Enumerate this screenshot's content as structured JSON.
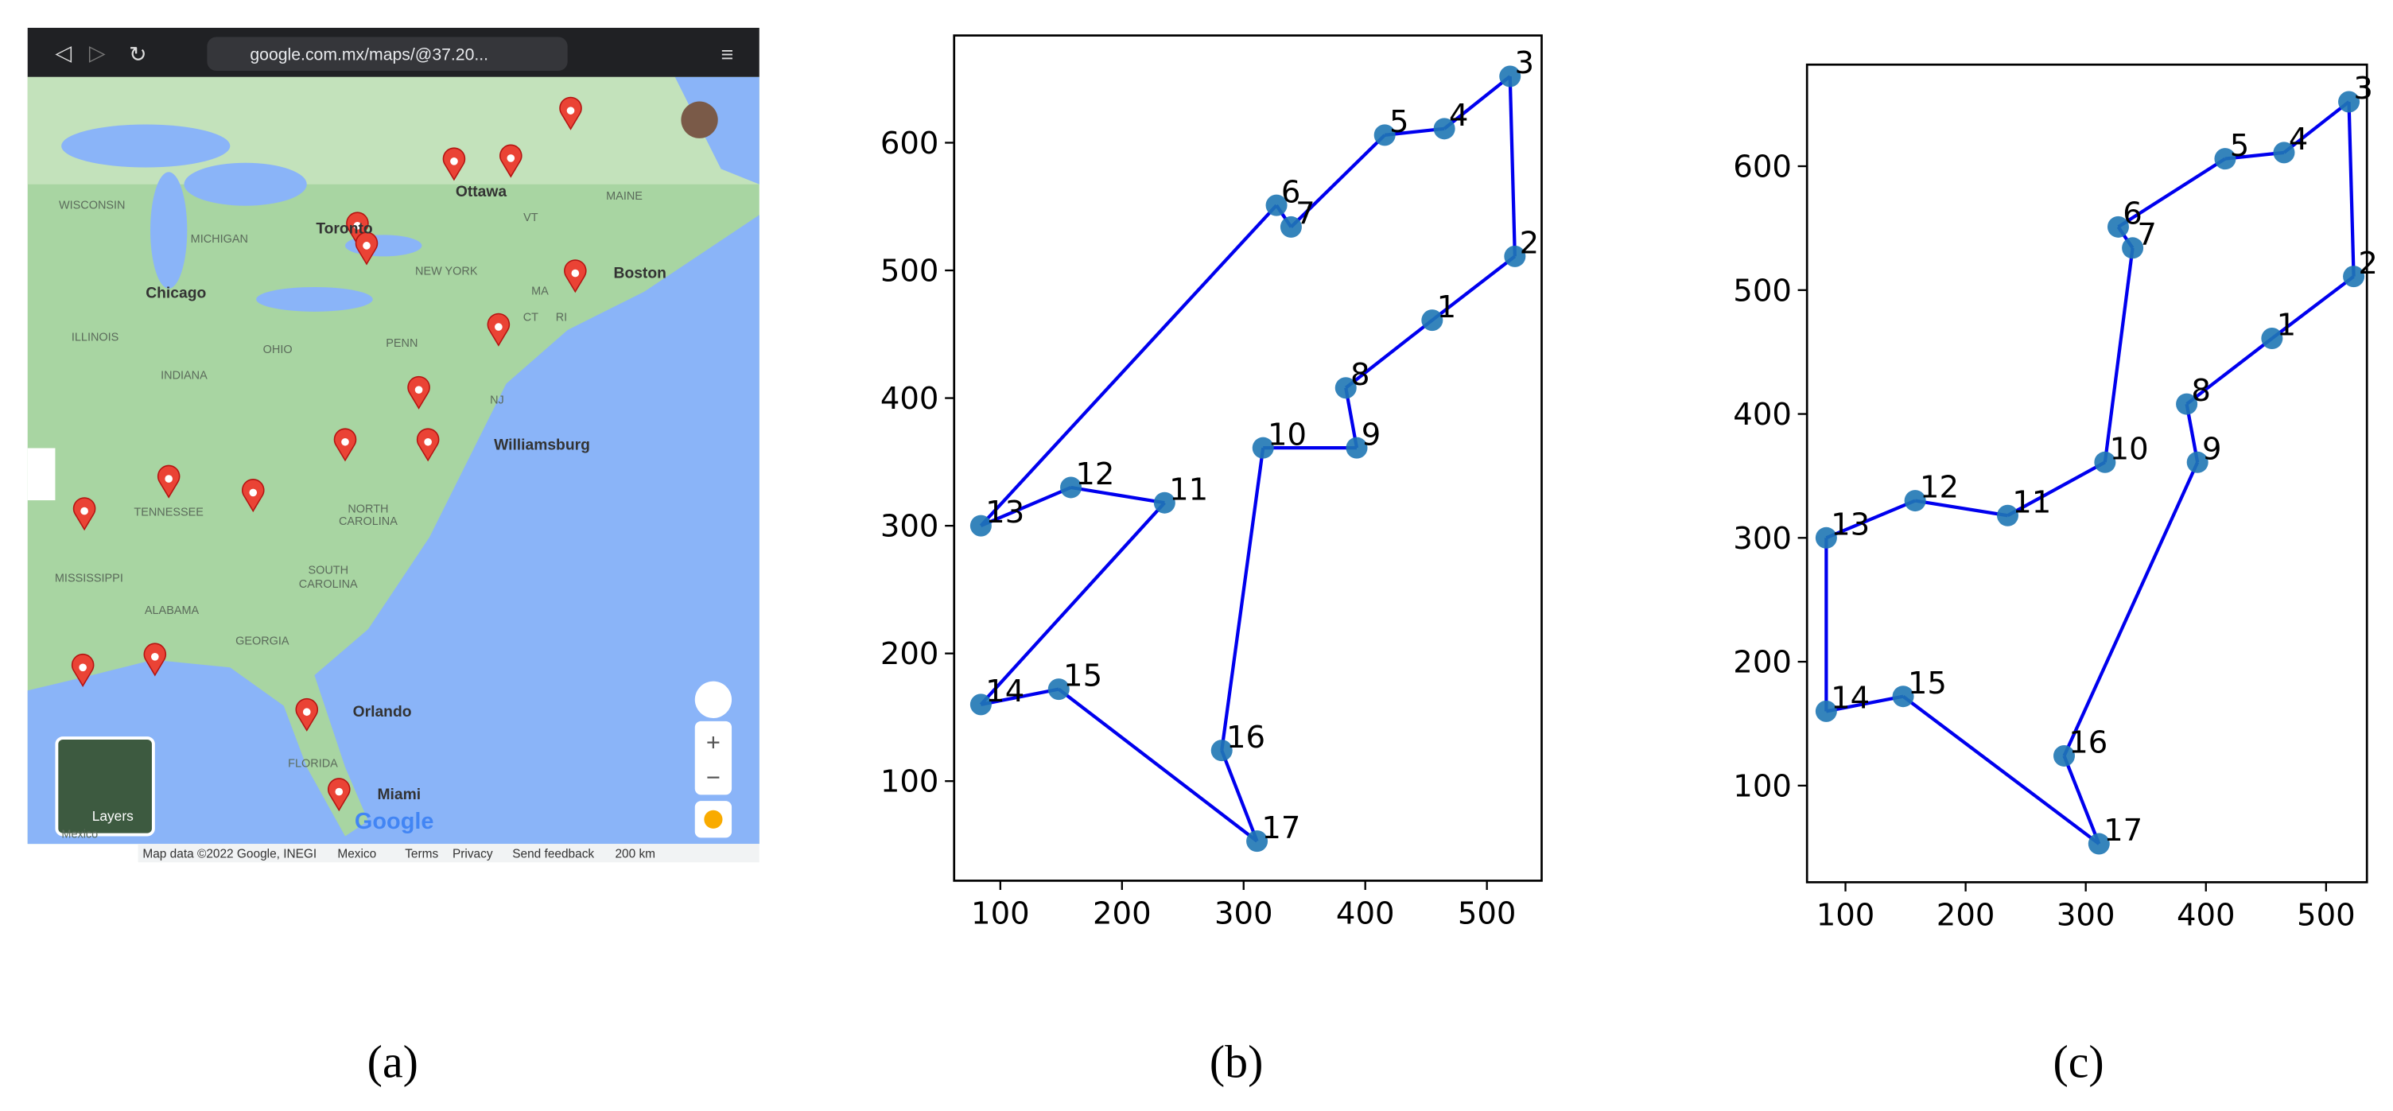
{
  "map": {
    "url": "google.com.mx/maps/@37.20...",
    "labels": [
      "WISCONSIN",
      "MICHIGAN",
      "Toronto",
      "Ottawa",
      "MAINE",
      "VT",
      "NEW YORK",
      "Boston",
      "MA",
      "CT",
      "RI",
      "Chicago",
      "ILLINOIS",
      "INDIANA",
      "OHIO",
      "PENN",
      "NJ",
      "Williamsburg",
      "TENNESSEE",
      "NORTH",
      "CAROLINA",
      "SOUTH",
      "CAROLINA",
      "MISSISSIPPI",
      "ALABAMA",
      "GEORGIA",
      "Orlando",
      "FLORIDA",
      "Miami",
      "Mexico"
    ],
    "layers": "Layers",
    "logo": "Google",
    "footer": [
      "Map data ©2022 Google, INEGI",
      "Mexico",
      "Terms",
      "Privacy",
      "Send feedback",
      "200 km"
    ]
  },
  "chart_data": [
    {
      "type": "scatter",
      "labels": [
        "1",
        "2",
        "3",
        "4",
        "5",
        "6",
        "7",
        "8",
        "9",
        "10",
        "11",
        "12",
        "13",
        "14",
        "15",
        "16",
        "17"
      ],
      "x": [
        455,
        523,
        519,
        465,
        416,
        327,
        339,
        384,
        393,
        316,
        235,
        158,
        84,
        84,
        148,
        282,
        311
      ],
      "y": [
        461,
        511,
        652,
        611,
        606,
        551,
        534,
        408,
        361,
        361,
        318,
        330,
        300,
        160,
        172,
        124,
        53
      ],
      "route": [
        13,
        6,
        7,
        5,
        4,
        3,
        2,
        1,
        8,
        9,
        10,
        16,
        17,
        15,
        14,
        11,
        12,
        13
      ],
      "color": "#1f77b4",
      "line_color": "#0000ee",
      "xlim": [
        62,
        545
      ],
      "ylim": [
        22,
        684
      ],
      "xticks": [
        100,
        200,
        300,
        400,
        500
      ],
      "yticks": [
        100,
        200,
        300,
        400,
        500,
        600
      ]
    },
    {
      "type": "scatter",
      "labels": [
        "1",
        "2",
        "3",
        "4",
        "5",
        "6",
        "7",
        "8",
        "9",
        "10",
        "11",
        "12",
        "13",
        "14",
        "15",
        "16",
        "17"
      ],
      "x": [
        455,
        523,
        519,
        465,
        416,
        327,
        339,
        384,
        393,
        316,
        235,
        158,
        84,
        84,
        148,
        282,
        311
      ],
      "y": [
        461,
        511,
        652,
        611,
        606,
        551,
        534,
        408,
        361,
        361,
        318,
        330,
        300,
        160,
        172,
        124,
        53
      ],
      "route": [
        13,
        12,
        11,
        10,
        7,
        6,
        5,
        4,
        3,
        2,
        1,
        8,
        9,
        16,
        17,
        15,
        14,
        13
      ],
      "color": "#1f77b4",
      "line_color": "#0000ee",
      "xlim": [
        68,
        534
      ],
      "ylim": [
        22,
        682
      ],
      "xticks": [
        100,
        200,
        300,
        400,
        500
      ],
      "yticks": [
        100,
        200,
        300,
        400,
        500,
        600
      ]
    }
  ],
  "captions": [
    "(a)",
    "(b)",
    "(c)"
  ]
}
